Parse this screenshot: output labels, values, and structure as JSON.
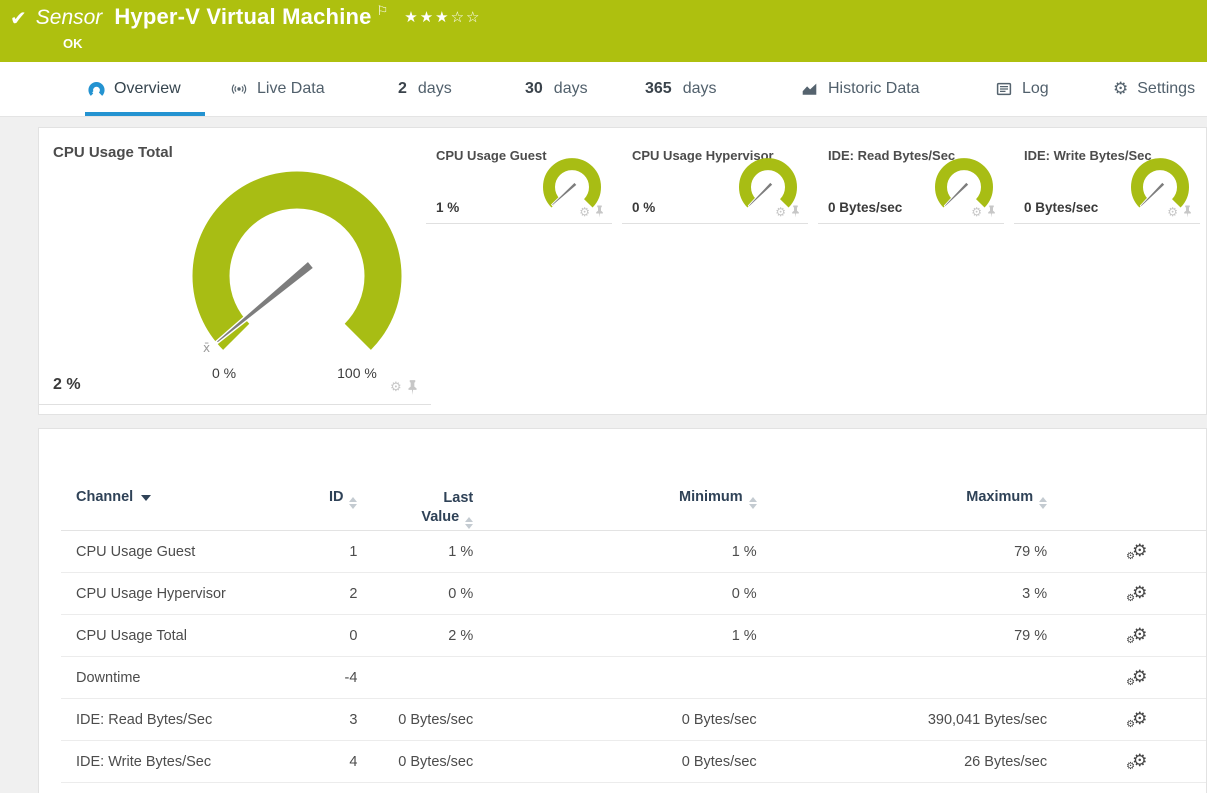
{
  "banner": {
    "sensor_label": "Sensor",
    "title": "Hyper-V Virtual Machine",
    "status": "OK",
    "check_glyph": "✔",
    "flag_glyph": "⚐",
    "stars_filled": 3,
    "stars_total": 5
  },
  "tabs": [
    {
      "label": "Overview",
      "icon": "gauge-icon",
      "active": true
    },
    {
      "label": "Live Data",
      "icon": "broadcast-icon"
    },
    {
      "num": "2",
      "label": "days"
    },
    {
      "num": "30",
      "label": "days"
    },
    {
      "num": "365",
      "label": "days"
    },
    {
      "label": "Historic Data",
      "icon": "area-chart-icon"
    },
    {
      "label": "Log",
      "icon": "log-icon"
    },
    {
      "label": "Settings",
      "icon": "gear-icon"
    }
  ],
  "gauges": {
    "primary": {
      "title": "CPU Usage Total",
      "value": "2 %",
      "value_pct": 2,
      "scale_min": "0 %",
      "scale_max": "100 %",
      "avg_marker": "x̄"
    },
    "small": [
      {
        "title": "CPU Usage Guest",
        "value": "1 %",
        "value_pct": 1
      },
      {
        "title": "CPU Usage Hypervisor",
        "value": "0 %",
        "value_pct": 0
      },
      {
        "title": "IDE: Read Bytes/Sec",
        "value": "0 Bytes/sec",
        "value_pct": 0
      },
      {
        "title": "IDE: Write Bytes/Sec",
        "value": "0 Bytes/sec",
        "value_pct": 0
      }
    ]
  },
  "table": {
    "headers": {
      "channel": "Channel",
      "id": "ID",
      "last_line1": "Last",
      "last_line2": "Value",
      "minimum": "Minimum",
      "maximum": "Maximum"
    },
    "rows": [
      {
        "channel": "CPU Usage Guest",
        "id": "1",
        "last": "1 %",
        "min": "1 %",
        "max": "79 %"
      },
      {
        "channel": "CPU Usage Hypervisor",
        "id": "2",
        "last": "0 %",
        "min": "0 %",
        "max": "3 %"
      },
      {
        "channel": "CPU Usage Total",
        "id": "0",
        "last": "2 %",
        "min": "1 %",
        "max": "79 %"
      },
      {
        "channel": "Downtime",
        "id": "-4",
        "last": "",
        "min": "",
        "max": ""
      },
      {
        "channel": "IDE: Read Bytes/Sec",
        "id": "3",
        "last": "0 Bytes/sec",
        "min": "0 Bytes/sec",
        "max": "390,041 Bytes/sec"
      },
      {
        "channel": "IDE: Write Bytes/Sec",
        "id": "4",
        "last": "0 Bytes/sec",
        "min": "0 Bytes/sec",
        "max": "26 Bytes/sec"
      }
    ]
  },
  "colors": {
    "banner_green": "#aec00f",
    "gauge_green": "#a8bd14",
    "accent_blue": "#2493d1",
    "header_navy": "#2f4257"
  }
}
